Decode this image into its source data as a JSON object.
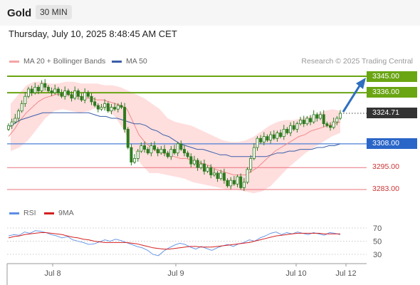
{
  "header": {
    "symbol": "Gold",
    "timeframe": "30 MIN"
  },
  "datetime": "Thursday, July 10, 2025 8:48:45 AM CET",
  "legend": {
    "bb_label": "MA 20 + Bollinger Bands",
    "ma50_label": "MA 50",
    "rsi_label": "RSI",
    "rsi_ma_label": "9MA"
  },
  "credit": "Research © 2025 Trading Central",
  "colors": {
    "resistance": "#6aa513",
    "support_main": "#4a7fd6",
    "support": "#e8707a",
    "candle": "#2d7a1f",
    "ma50": "#3b5fa8",
    "ma20": "#f08a8a",
    "bands": "#ffd0d0",
    "rsi": "#5b8ee6",
    "rsi_ma": "#d42020",
    "arrow": "#2f6fbf"
  },
  "chart_data": {
    "type": "candlestick",
    "timeframe": "30 MIN",
    "ylim": [
      3275,
      3350
    ],
    "x_ticks": [
      "Jul 8",
      "Jul 9",
      "Jul 10",
      "Jul 12"
    ],
    "price_levels": [
      {
        "label": "3345.00",
        "value": 3345.0,
        "kind": "resistance"
      },
      {
        "label": "3336.00",
        "value": 3336.0,
        "kind": "resistance"
      },
      {
        "label": "3324.71",
        "value": 3324.71,
        "kind": "current"
      },
      {
        "label": "3308.00",
        "value": 3308.0,
        "kind": "pivot"
      },
      {
        "label": "3295.00",
        "value": 3295.0,
        "kind": "support"
      },
      {
        "label": "3283.00",
        "value": 3283.0,
        "kind": "support"
      }
    ],
    "close": [
      3318,
      3320,
      3322,
      3326,
      3330,
      3334,
      3338,
      3336,
      3339,
      3337,
      3341,
      3339,
      3337,
      3336,
      3338,
      3336,
      3334,
      3337,
      3335,
      3333,
      3337,
      3334,
      3332,
      3336,
      3334,
      3331,
      3329,
      3327,
      3328,
      3330,
      3326,
      3328,
      3327,
      3329,
      3328,
      3316,
      3306,
      3298,
      3300,
      3304,
      3307,
      3305,
      3303,
      3307,
      3305,
      3303,
      3305,
      3303,
      3301,
      3305,
      3303,
      3308,
      3305,
      3303,
      3301,
      3297,
      3299,
      3295,
      3297,
      3293,
      3295,
      3291,
      3292,
      3289,
      3292,
      3288,
      3285,
      3288,
      3286,
      3290,
      3284,
      3287,
      3294,
      3300,
      3306,
      3311,
      3309,
      3312,
      3310,
      3313,
      3311,
      3314,
      3312,
      3316,
      3314,
      3318,
      3316,
      3319,
      3321,
      3319,
      3322,
      3320,
      3324,
      3322,
      3324,
      3319,
      3318,
      3317,
      3320,
      3322,
      3324.71
    ],
    "ma50": [
      3317,
      3319,
      3321,
      3322,
      3323,
      3324,
      3325,
      3325,
      3325,
      3325,
      3325,
      3325,
      3325,
      3325,
      3325,
      3324,
      3323,
      3323,
      3322,
      3322,
      3321,
      3320,
      3319,
      3319,
      3318,
      3316,
      3315,
      3313,
      3312,
      3310,
      3308,
      3307,
      3306,
      3305,
      3305,
      3304,
      3303,
      3302,
      3302,
      3301,
      3301,
      3301,
      3301,
      3301,
      3301,
      3301,
      3302,
      3303,
      3303,
      3304,
      3304,
      3305,
      3305,
      3305,
      3306,
      3306,
      3307,
      3307,
      3308
    ],
    "ma20": [
      3312,
      3316,
      3321,
      3325,
      3328,
      3331,
      3333,
      3334,
      3335,
      3335,
      3335,
      3334,
      3334,
      3333,
      3333,
      3332,
      3332,
      3331,
      3330,
      3329,
      3327,
      3320,
      3313,
      3309,
      3306,
      3304,
      3303,
      3302,
      3301,
      3300,
      3300,
      3299,
      3298,
      3297,
      3296,
      3294,
      3293,
      3292,
      3291,
      3291,
      3291,
      3293,
      3295,
      3298,
      3301,
      3304,
      3306,
      3308,
      3310,
      3312,
      3313,
      3315,
      3316,
      3317,
      3318,
      3319,
      3320
    ],
    "bb_upper": [
      3330,
      3335,
      3340,
      3342,
      3342,
      3341,
      3341,
      3342,
      3342,
      3341,
      3341,
      3341,
      3340,
      3340,
      3339,
      3337,
      3335,
      3333,
      3330,
      3327,
      3322,
      3320,
      3319,
      3318,
      3316,
      3314,
      3312,
      3310,
      3309,
      3309,
      3310,
      3312,
      3315,
      3318,
      3320,
      3321,
      3321,
      3322,
      3323,
      3324,
      3326,
      3327,
      3326
    ],
    "bb_lower": [
      3304,
      3306,
      3310,
      3316,
      3322,
      3326,
      3327,
      3326,
      3325,
      3326,
      3328,
      3327,
      3323,
      3316,
      3306,
      3297,
      3292,
      3292,
      3291,
      3290,
      3289,
      3287,
      3286,
      3285,
      3284,
      3283,
      3283,
      3282,
      3281,
      3282,
      3285,
      3290,
      3295,
      3299,
      3303,
      3306,
      3309,
      3312,
      3314
    ],
    "rsi": [
      58,
      60,
      59,
      64,
      62,
      66,
      65,
      63,
      60,
      58,
      55,
      57,
      52,
      50,
      48,
      45,
      46,
      49,
      52,
      50,
      53,
      51,
      48,
      45,
      42,
      40,
      36,
      30,
      28,
      35,
      40,
      44,
      47,
      45,
      41,
      38,
      42,
      39,
      36,
      40,
      43,
      45,
      42,
      46,
      48,
      52,
      50,
      55,
      58,
      62,
      64,
      60,
      63,
      61,
      64,
      62,
      60,
      63,
      61,
      59,
      63,
      62,
      60
    ],
    "rsi_ma": [
      55,
      57,
      58,
      60,
      61,
      62,
      63,
      63,
      62,
      61,
      60,
      58,
      56,
      55,
      53,
      52,
      50,
      49,
      48,
      48,
      48,
      48,
      48,
      47,
      46,
      44,
      42,
      40,
      39,
      38,
      38,
      39,
      40,
      41,
      42,
      42,
      41,
      41,
      41,
      42,
      43,
      44,
      45,
      46,
      47,
      48,
      50,
      52,
      54,
      56,
      58,
      59,
      60,
      61,
      62,
      62,
      62,
      62,
      62,
      61,
      61,
      61,
      61
    ],
    "rsi_levels": [
      {
        "label": "70",
        "value": 70
      },
      {
        "label": "50",
        "value": 50
      },
      {
        "label": "30",
        "value": 30
      }
    ],
    "forecast_target": 3345.0
  }
}
